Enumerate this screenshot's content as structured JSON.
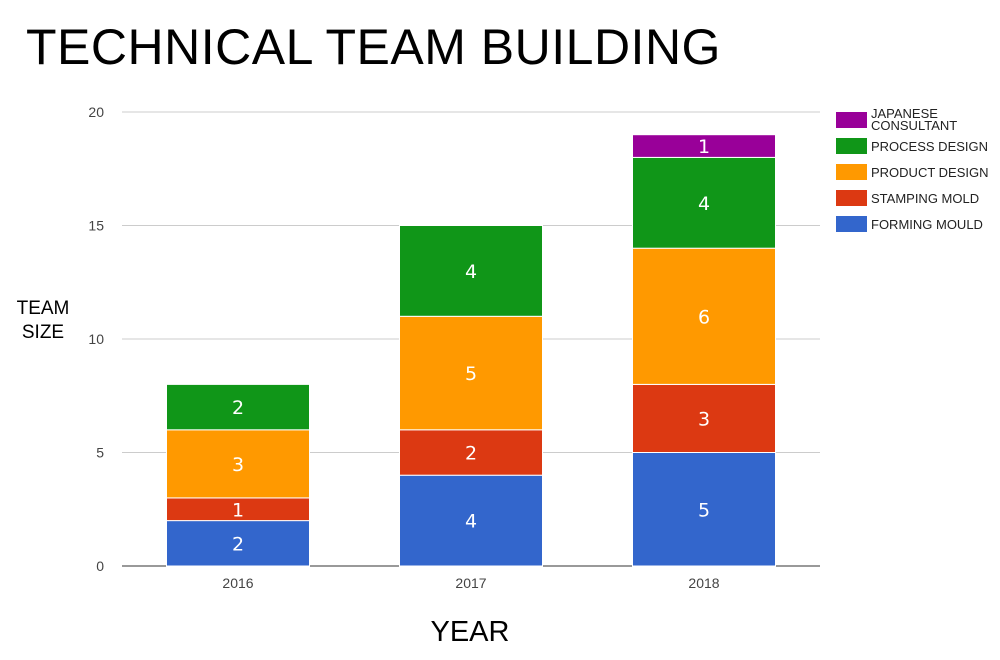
{
  "chart_data": {
    "type": "bar",
    "stacked": true,
    "title": "TECHNICAL TEAM BUILDING",
    "xlabel": "YEAR",
    "ylabel_lines": [
      "TEAM",
      "SIZE"
    ],
    "categories": [
      "2016",
      "2017",
      "2018"
    ],
    "ylim": [
      0,
      20
    ],
    "yticks": [
      "0",
      "5",
      "10",
      "15",
      "20"
    ],
    "grid": true,
    "legend_position": "right",
    "series": [
      {
        "name": "FORMING MOULD",
        "color": "#3366cc",
        "values": [
          2,
          4,
          5
        ]
      },
      {
        "name": "STAMPING MOLD",
        "color": "#dc3912",
        "values": [
          1,
          2,
          3
        ]
      },
      {
        "name": "PRODUCT DESIGN",
        "color": "#ff9900",
        "values": [
          3,
          5,
          6
        ]
      },
      {
        "name": "PROCESS DESIGN",
        "color": "#109618",
        "values": [
          2,
          4,
          4
        ]
      },
      {
        "name": "JAPANESE CONSULTANT",
        "legend_lines": [
          "JAPANESE",
          "CONSULTANT"
        ],
        "color": "#990099",
        "values": [
          0,
          0,
          1
        ]
      }
    ]
  }
}
